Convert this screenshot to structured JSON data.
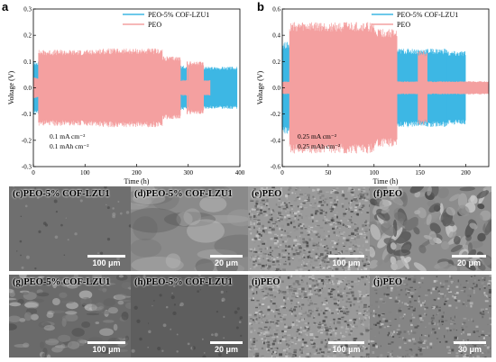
{
  "panels": [
    {
      "label": "a",
      "chart": {
        "type": "line",
        "xlabel": "Time (h)",
        "ylabel": "Voltage (V)",
        "xlim": [
          0,
          400
        ],
        "ylim": [
          -0.3,
          0.3
        ],
        "xticks": [
          "0",
          "100",
          "200",
          "300",
          "400"
        ],
        "yticks": [
          "0.3",
          "0.2",
          "0.1",
          "0.0",
          "-0.1",
          "-0.2",
          "-0.3"
        ],
        "series": [
          {
            "name": "PEO-5% COF-LZU1",
            "color": "#3db7e4",
            "segments": [
              [
                0,
                280,
                0.1
              ],
              [
                280,
                302,
                0.085
              ],
              [
                302,
                330,
                0.08
              ],
              [
                330,
                395,
                0.08
              ]
            ]
          },
          {
            "name": "PEO",
            "color": "#f4a0a0",
            "segments": [
              [
                0,
                10,
                0.04
              ],
              [
                10,
                120,
                0.145
              ],
              [
                120,
                250,
                0.15
              ],
              [
                250,
                285,
                0.12
              ],
              [
                285,
                300,
                0.03
              ],
              [
                300,
                330,
                0.1
              ],
              [
                330,
                343,
                0.03
              ]
            ]
          }
        ],
        "annotations": [
          "0.1 mA cm⁻²",
          "0.1 mAh cm⁻²"
        ],
        "legend": "top-right"
      }
    },
    {
      "label": "b",
      "chart": {
        "type": "line",
        "xlabel": "Time (h)",
        "ylabel": "Voltage (V)",
        "xlim": [
          0,
          225
        ],
        "ylim": [
          -0.6,
          0.6
        ],
        "xticks": [
          "0",
          "50",
          "100",
          "150",
          "200"
        ],
        "yticks": [
          "0.6",
          "0.4",
          "0.2",
          "0.0",
          "-0.2",
          "-0.4",
          "-0.6"
        ],
        "series": [
          {
            "name": "PEO-5% COF-LZU1",
            "color": "#3db7e4",
            "segments": [
              [
                0,
                125,
                0.35
              ],
              [
                125,
                180,
                0.3
              ],
              [
                180,
                200,
                0.28
              ],
              [
                200,
                225,
                0.03
              ]
            ]
          },
          {
            "name": "PEO",
            "color": "#f4a0a0",
            "segments": [
              [
                0,
                8,
                0.05
              ],
              [
                8,
                100,
                0.5
              ],
              [
                100,
                125,
                0.45
              ],
              [
                125,
                148,
                0.05
              ],
              [
                148,
                158,
                0.28
              ],
              [
                158,
                225,
                0.05
              ]
            ]
          }
        ],
        "annotations": [
          "0.25 mA cm⁻²",
          "0.25 mAh cm⁻²"
        ],
        "legend": "top-right"
      }
    }
  ],
  "sem": [
    {
      "label": "(c)",
      "title": "PEO-5% COF-LZU1",
      "scale": "100 μm",
      "kind": "smooth"
    },
    {
      "label": "(d)",
      "title": "PEO-5% COF-LZU1",
      "scale": "20 μm",
      "kind": "wavy"
    },
    {
      "label": "(e)",
      "title": "PEO",
      "scale": "100 μm",
      "kind": "rough"
    },
    {
      "label": "(f)",
      "title": "PEO",
      "scale": "20 μm",
      "kind": "flakes"
    },
    {
      "label": "(g)",
      "title": "PEO-5% COF-LZU1",
      "scale": "100 μm",
      "kind": "blotchy"
    },
    {
      "label": "(h)",
      "title": "PEO-5% COF-LZU1",
      "scale": "20 μm",
      "kind": "smooth2"
    },
    {
      "label": "(i)",
      "title": "PEO",
      "scale": "100 μm",
      "kind": "rough"
    },
    {
      "label": "(j)",
      "title": "PEO",
      "scale": "30 μm",
      "kind": "grainy"
    }
  ]
}
